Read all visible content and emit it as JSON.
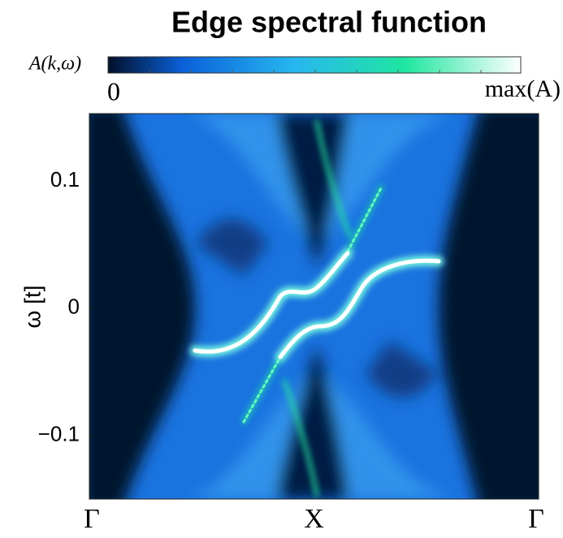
{
  "chart_data": {
    "type": "heatmap",
    "title": "Edge spectral function",
    "colorbar": {
      "label": "A(k,ω)",
      "ticks": [
        0,
        "max(A)"
      ]
    },
    "ylabel": "ω [t]",
    "ylim": [
      -0.15,
      0.153
    ],
    "yticks": [
      {
        "value": 0.1,
        "label": "0.1"
      },
      0,
      {
        "value": -0.1,
        "label": "−0.1"
      }
    ],
    "categories": [
      "Γ",
      "X",
      "Γ"
    ]
  }
}
